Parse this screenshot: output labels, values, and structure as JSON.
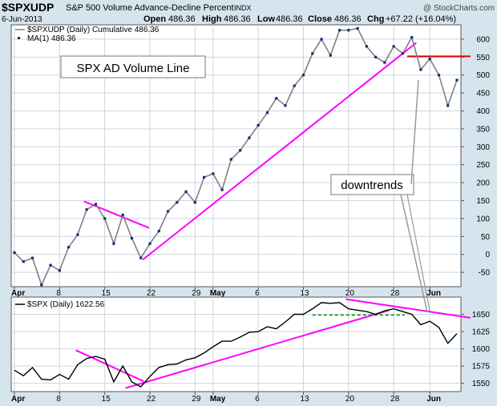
{
  "header": {
    "symbol": "$SPXUDP",
    "description": "S&P 500 Volume Advance-Decline Percent",
    "exchange": "INDX",
    "copyright": "@ StockCharts.com",
    "date": "6-Jun-2013",
    "open_label": "Open",
    "open": "486.36",
    "high_label": "High",
    "high": "486.36",
    "low_label": "Low",
    "low": "486.36",
    "close_label": "Close",
    "close": "486.36",
    "chg_label": "Chg",
    "chg": "+67.22 (+16.04%)"
  },
  "colors": {
    "plot_bg": "#ffffff",
    "frame_bg": "#d6e4ee",
    "grid": "#c9d6df",
    "upper_line": "#808080",
    "marker": "#1a2a7a",
    "lower_line": "#000000",
    "trendline": "#ff00ff",
    "resistance": "#e00000",
    "support": "#009900",
    "annotation_line": "#999999"
  },
  "annotations": {
    "title_box": "SPX AD Volume Line",
    "downtrends_box": "downtrends"
  },
  "chart_data": [
    {
      "type": "line",
      "legend": [
        {
          "label": "$SPXUDP (Daily) Cumulative 486.36",
          "style": "line"
        },
        {
          "label": "MA(1) 486.36",
          "style": "marker"
        }
      ],
      "ylim": [
        -90,
        640
      ],
      "y_ticks": [
        "-50",
        "0",
        "50",
        "100",
        "150",
        "200",
        "250",
        "300",
        "350",
        "400",
        "450",
        "500",
        "550",
        "600"
      ],
      "y_tick_values": [
        -50,
        0,
        50,
        100,
        150,
        200,
        250,
        300,
        350,
        400,
        450,
        500,
        550,
        600
      ],
      "series": [
        {
          "values": [
            5,
            -20,
            -10,
            -85,
            -30,
            -45,
            20,
            55,
            125,
            140,
            100,
            30,
            110,
            45,
            -10,
            30,
            65,
            120,
            145,
            175,
            145,
            215,
            225,
            180,
            265,
            290,
            325,
            360,
            395,
            435,
            415,
            470,
            500,
            560,
            600,
            555,
            625,
            625,
            630,
            580,
            550,
            535,
            580,
            560,
            605,
            515,
            545,
            500,
            415,
            486
          ]
        }
      ]
    },
    {
      "type": "line",
      "legend": [
        {
          "label": "$SPX (Daily) 1622.56",
          "style": "line"
        }
      ],
      "ylim": [
        1538,
        1675
      ],
      "y_ticks": [
        "1550",
        "1575",
        "1600",
        "1625",
        "1650"
      ],
      "y_tick_values": [
        1550,
        1575,
        1600,
        1625,
        1650
      ],
      "series": [
        {
          "values": [
            1569,
            1561,
            1573,
            1556,
            1555,
            1563,
            1556,
            1577,
            1586,
            1589,
            1585,
            1552,
            1575,
            1552,
            1545,
            1560,
            1573,
            1577,
            1578,
            1584,
            1587,
            1594,
            1603,
            1611,
            1611,
            1617,
            1624,
            1625,
            1632,
            1629,
            1639,
            1650,
            1650,
            1658,
            1667,
            1666,
            1667,
            1658,
            1656,
            1654,
            1650,
            1655,
            1658,
            1654,
            1650,
            1635,
            1640,
            1631,
            1608,
            1622
          ]
        }
      ]
    }
  ],
  "x_axis": {
    "tick_labels": [
      "Apr",
      "8",
      "15",
      "22",
      "29",
      "May",
      "6",
      "13",
      "20",
      "28",
      "Jun"
    ],
    "tick_index": [
      0,
      5,
      10,
      15,
      20,
      22,
      27,
      32,
      37,
      42,
      46
    ],
    "bold": [
      "Apr",
      "May",
      "Jun"
    ]
  },
  "overlays": {
    "upper_trendlines": [
      {
        "from": [
          7.7,
          148
        ],
        "to": [
          14.9,
          74
        ]
      },
      {
        "from": [
          14.2,
          -15
        ],
        "to": [
          44.5,
          590
        ]
      }
    ],
    "upper_resistance": {
      "from": [
        43.5,
        552
      ],
      "to": [
        50.5,
        552
      ]
    },
    "lower_trendlines": [
      {
        "from": [
          6.8,
          1598
        ],
        "to": [
          14.3,
          1553
        ]
      },
      {
        "from": [
          12.3,
          1543
        ],
        "to": [
          41.5,
          1656
        ]
      },
      {
        "from": [
          36.7,
          1672
        ],
        "to": [
          50.5,
          1645
        ]
      }
    ],
    "lower_support": {
      "from": [
        33.0,
        1649
      ],
      "to": [
        43.2,
        1649
      ]
    }
  }
}
